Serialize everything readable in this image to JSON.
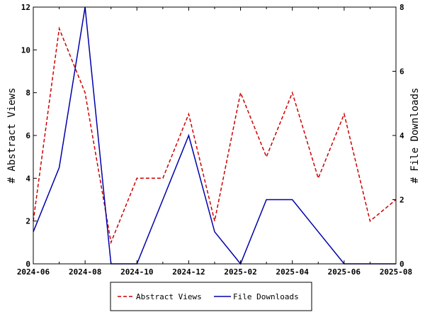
{
  "chart_data": {
    "type": "line",
    "title": "",
    "xlabel": "",
    "ylabel_left": "# Abstract Views",
    "ylabel_right": "# File Downloads",
    "x": [
      "2024-06",
      "2024-07",
      "2024-08",
      "2024-09",
      "2024-10",
      "2024-11",
      "2024-12",
      "2025-01",
      "2025-02",
      "2025-03",
      "2025-04",
      "2025-05",
      "2025-06",
      "2025-07",
      "2025-08"
    ],
    "x_ticks": [
      "2024-06",
      "2024-08",
      "2024-10",
      "2024-12",
      "2025-02",
      "2025-04",
      "2025-06",
      "2025-08"
    ],
    "ylim_left": [
      0,
      12
    ],
    "yticks_left": [
      0,
      2,
      4,
      6,
      8,
      10,
      12
    ],
    "ylim_right": [
      0,
      8
    ],
    "yticks_right": [
      0,
      2,
      4,
      6,
      8
    ],
    "grid": false,
    "legend_position": "bottom-center",
    "series": [
      {
        "name": "Abstract Views",
        "axis": "left",
        "color": "#cc0000",
        "style": "dashed",
        "values": [
          2,
          11,
          8,
          1,
          4,
          4,
          7,
          2,
          8,
          5,
          8,
          4,
          7,
          2,
          3
        ]
      },
      {
        "name": "File Downloads",
        "axis": "right",
        "color": "#0000aa",
        "style": "solid",
        "values": [
          1,
          3,
          8,
          0,
          0,
          2,
          4,
          1,
          0,
          2,
          2,
          1,
          0,
          0,
          0
        ]
      }
    ]
  }
}
